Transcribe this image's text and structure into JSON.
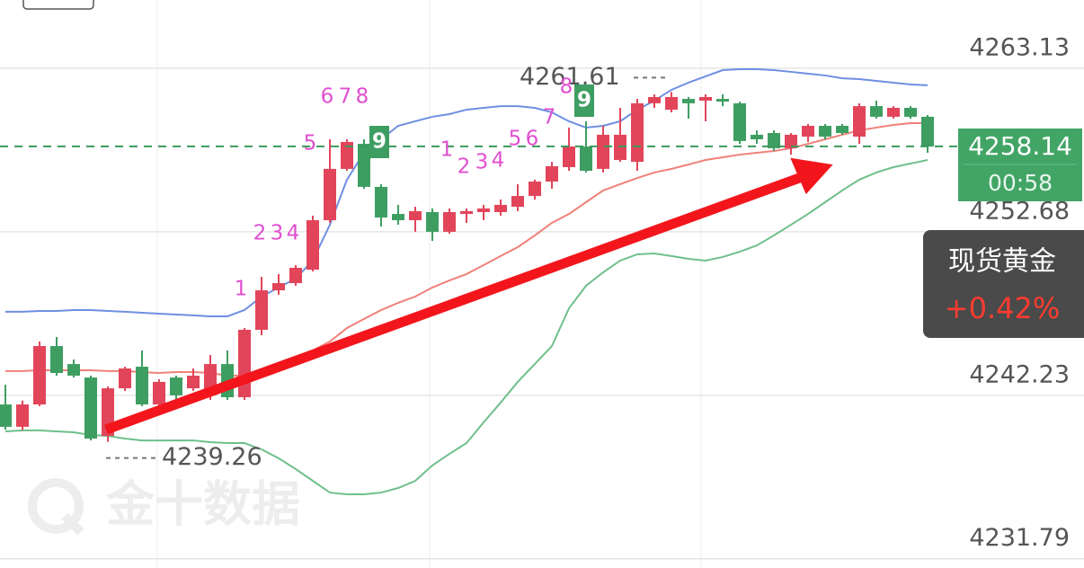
{
  "chart_data": {
    "type": "candlestick",
    "up_color": "#e2455a",
    "down_color": "#3e9e62",
    "ylim": [
      4231.2,
      4267.49
    ],
    "yticks": [
      4263.13,
      4252.68,
      4242.23,
      4231.79
    ],
    "grid": true,
    "ohlc": [
      [
        4241.65,
        4242.91,
        4240.04,
        4240.22
      ],
      [
        4240.22,
        4241.9,
        4240.0,
        4241.65
      ],
      [
        4241.65,
        4245.67,
        4241.54,
        4245.38
      ],
      [
        4245.38,
        4245.96,
        4243.49,
        4243.66
      ],
      [
        4244.23,
        4244.52,
        4243.37,
        4243.49
      ],
      [
        4243.37,
        4243.49,
        4239.35,
        4239.47
      ],
      [
        4239.64,
        4242.8,
        4239.26,
        4242.68
      ],
      [
        4242.68,
        4244.06,
        4242.51,
        4243.95
      ],
      [
        4244.06,
        4245.1,
        4241.54,
        4241.65
      ],
      [
        4241.65,
        4243.26,
        4241.54,
        4243.09
      ],
      [
        4243.37,
        4243.49,
        4241.94,
        4242.23
      ],
      [
        4242.68,
        4243.95,
        4242.51,
        4243.49
      ],
      [
        4242.23,
        4244.81,
        4241.94,
        4244.23
      ],
      [
        4244.23,
        4245.1,
        4241.94,
        4242.11
      ],
      [
        4242.11,
        4246.53,
        4241.94,
        4246.42
      ],
      [
        4246.42,
        4249.8,
        4246.07,
        4248.94
      ],
      [
        4248.94,
        4249.98,
        4248.66,
        4249.4
      ],
      [
        4249.4,
        4250.55,
        4249.23,
        4250.38
      ],
      [
        4250.26,
        4253.71,
        4250.15,
        4253.42
      ],
      [
        4253.42,
        4258.59,
        4253.25,
        4256.7
      ],
      [
        4256.7,
        4258.59,
        4256.58,
        4258.42
      ],
      [
        4258.3,
        4258.59,
        4255.43,
        4255.55
      ],
      [
        4255.55,
        4255.72,
        4253.02,
        4253.59
      ],
      [
        4253.82,
        4254.4,
        4253.13,
        4253.42
      ],
      [
        4253.42,
        4254.28,
        4252.68,
        4254.0
      ],
      [
        4253.94,
        4254.17,
        4252.1,
        4252.68
      ],
      [
        4252.68,
        4254.17,
        4252.56,
        4253.94
      ],
      [
        4253.82,
        4254.17,
        4253.25,
        4254.0
      ],
      [
        4253.94,
        4254.4,
        4253.42,
        4254.17
      ],
      [
        4253.94,
        4254.74,
        4253.71,
        4254.4
      ],
      [
        4254.28,
        4255.72,
        4254.0,
        4254.97
      ],
      [
        4254.97,
        4256.01,
        4254.74,
        4255.89
      ],
      [
        4255.89,
        4257.15,
        4255.43,
        4256.87
      ],
      [
        4256.81,
        4259.34,
        4256.58,
        4258.13
      ],
      [
        4258.13,
        4259.74,
        4256.47,
        4256.58
      ],
      [
        4256.7,
        4259.45,
        4256.47,
        4258.88
      ],
      [
        4257.27,
        4260.6,
        4257.15,
        4258.88
      ],
      [
        4257.15,
        4261.17,
        4256.58,
        4260.89
      ],
      [
        4260.89,
        4261.46,
        4260.6,
        4261.29
      ],
      [
        4260.48,
        4261.61,
        4260.31,
        4261.29
      ],
      [
        4261.17,
        4261.29,
        4259.91,
        4260.89
      ],
      [
        4261.06,
        4261.46,
        4259.74,
        4261.29
      ],
      [
        4261.17,
        4261.46,
        4260.71,
        4261.0
      ],
      [
        4260.89,
        4261.0,
        4258.3,
        4258.48
      ],
      [
        4258.88,
        4259.16,
        4258.3,
        4258.59
      ],
      [
        4258.99,
        4259.16,
        4257.84,
        4258.02
      ],
      [
        4258.02,
        4258.99,
        4257.61,
        4258.88
      ],
      [
        4258.76,
        4259.57,
        4258.42,
        4259.45
      ],
      [
        4259.45,
        4259.57,
        4258.59,
        4258.76
      ],
      [
        4259.45,
        4259.57,
        4258.88,
        4258.99
      ],
      [
        4258.76,
        4260.89,
        4258.3,
        4260.71
      ],
      [
        4260.71,
        4261.06,
        4259.91,
        4260.03
      ],
      [
        4260.03,
        4260.71,
        4259.91,
        4260.6
      ],
      [
        4260.6,
        4260.71,
        4259.91,
        4260.03
      ],
      [
        4260.03,
        4260.14,
        4257.73,
        4258.13
      ]
    ],
    "bands": [
      {
        "color": "#6e8fe3",
        "values": [
          4247.57,
          4247.57,
          4247.62,
          4247.62,
          4247.68,
          4247.68,
          4247.62,
          4247.57,
          4247.51,
          4247.45,
          4247.39,
          4247.34,
          4247.28,
          4247.28,
          4247.68,
          4248.54,
          4249.12,
          4249.69,
          4250.84,
          4253.13,
          4256.01,
          4257.73,
          4258.59,
          4259.45,
          4259.74,
          4260.03,
          4260.2,
          4260.48,
          4260.6,
          4260.71,
          4260.71,
          4260.6,
          4260.31,
          4259.74,
          4259.34,
          4259.45,
          4259.74,
          4260.48,
          4261.06,
          4261.75,
          4262.21,
          4262.61,
          4263.01,
          4263.07,
          4263.07,
          4263.01,
          4262.9,
          4262.78,
          4262.67,
          4262.49,
          4262.44,
          4262.32,
          4262.21,
          4262.09,
          4262.04
        ]
      },
      {
        "color": "#f08078",
        "values": [
          4243.78,
          4243.78,
          4243.83,
          4243.83,
          4243.83,
          4243.83,
          4243.78,
          4243.78,
          4243.72,
          4243.66,
          4243.72,
          4243.72,
          4243.66,
          4243.49,
          4243.49,
          4243.78,
          4244.12,
          4244.52,
          4245.1,
          4245.67,
          4246.53,
          4247.11,
          4247.68,
          4248.14,
          4248.54,
          4249.12,
          4249.57,
          4249.98,
          4250.55,
          4251.13,
          4251.7,
          4252.45,
          4253.25,
          4253.82,
          4254.57,
          4255.32,
          4255.72,
          4256.12,
          4256.47,
          4256.7,
          4256.98,
          4257.27,
          4257.44,
          4257.61,
          4257.73,
          4257.84,
          4258.02,
          4258.3,
          4258.59,
          4258.88,
          4259.16,
          4259.34,
          4259.51,
          4259.62,
          4259.62
        ]
      },
      {
        "color": "#6fbf8c",
        "values": [
          4239.93,
          4239.99,
          4239.99,
          4239.93,
          4239.87,
          4239.7,
          4239.64,
          4239.47,
          4239.35,
          4239.35,
          4239.35,
          4239.35,
          4239.24,
          4239.18,
          4239.18,
          4238.78,
          4238.21,
          4237.52,
          4236.77,
          4236.02,
          4235.91,
          4235.91,
          4236.02,
          4236.31,
          4236.77,
          4237.75,
          4238.49,
          4239.18,
          4240.5,
          4241.77,
          4243.09,
          4244.23,
          4245.38,
          4247.79,
          4249.23,
          4250.09,
          4250.84,
          4251.24,
          4251.3,
          4251.13,
          4250.95,
          4250.84,
          4251.07,
          4251.41,
          4251.81,
          4252.45,
          4253.13,
          4253.82,
          4254.57,
          4255.32,
          4256.01,
          4256.47,
          4256.81,
          4257.04,
          4257.27
        ]
      }
    ],
    "high": 4261.61,
    "low": 4239.26,
    "last_price": 4258.14,
    "countdown": "00:58",
    "td_labels": [
      "1",
      "2",
      "3",
      "4",
      "5",
      "6",
      "7",
      "8",
      "9",
      "1",
      "2",
      "3",
      "4",
      "5",
      "6",
      "7",
      "8",
      "9"
    ],
    "instrument": "现货黄金",
    "change": "+0.42%",
    "watermark": "金十数据"
  }
}
